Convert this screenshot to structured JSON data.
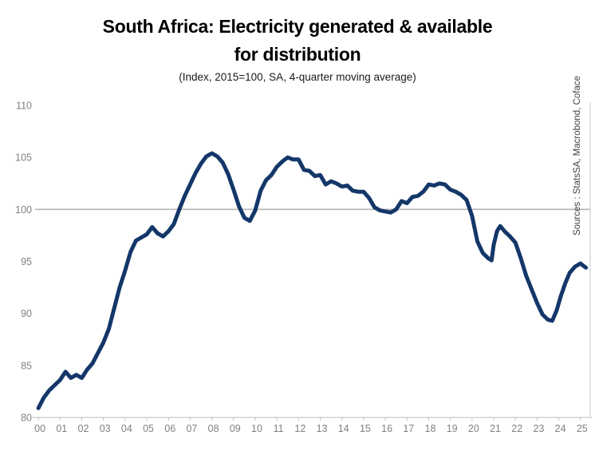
{
  "header": {
    "title_lines": [
      "South Africa: Electricity generated & available",
      "for distribution"
    ],
    "subtitle": "(Index, 2015=100, SA, 4-quarter moving average)"
  },
  "source_note": "Sources : StatsSA, Macrobond, Coface",
  "colors": {
    "line": "#143769",
    "reference_line": "#b5b5b5",
    "axis": "#bfbfbf",
    "frame": "#c9c9c9",
    "tick_label": "#808080",
    "title": "#000000",
    "subtitle": "#1a1a1a",
    "source": "#404040"
  },
  "chart_data": {
    "type": "line",
    "title": "South Africa: Electricity generated & available for distribution",
    "subtitle": "(Index, 2015=100, SA, 4-quarter moving average)",
    "xlabel": "",
    "ylabel": "",
    "xlim": [
      1999.85,
      2025.45
    ],
    "ylim": [
      80,
      110
    ],
    "grid": "off",
    "legend": "none",
    "reference_line_y": 100,
    "x_tick_labels": [
      "00",
      "01",
      "02",
      "03",
      "04",
      "05",
      "06",
      "07",
      "08",
      "09",
      "10",
      "11",
      "12",
      "13",
      "14",
      "15",
      "16",
      "17",
      "18",
      "19",
      "20",
      "21",
      "22",
      "23",
      "24",
      "25"
    ],
    "y_tick_labels": [
      80,
      85,
      90,
      95,
      100,
      105,
      110
    ],
    "series": [
      {
        "name": "Electricity generated & available for distribution, index 2015=100, 4-quarter moving average",
        "x": [
          2000.0,
          2000.25,
          2000.5,
          2000.75,
          2001.0,
          2001.25,
          2001.5,
          2001.75,
          2002.0,
          2002.25,
          2002.5,
          2002.75,
          2003.0,
          2003.25,
          2003.5,
          2003.75,
          2004.0,
          2004.25,
          2004.5,
          2004.75,
          2005.0,
          2005.25,
          2005.5,
          2005.75,
          2006.0,
          2006.25,
          2006.5,
          2006.75,
          2007.0,
          2007.25,
          2007.5,
          2007.75,
          2008.0,
          2008.25,
          2008.5,
          2008.75,
          2009.0,
          2009.25,
          2009.5,
          2009.75,
          2010.0,
          2010.25,
          2010.5,
          2010.75,
          2011.0,
          2011.25,
          2011.5,
          2011.75,
          2012.0,
          2012.25,
          2012.5,
          2012.75,
          2013.0,
          2013.25,
          2013.5,
          2013.75,
          2014.0,
          2014.25,
          2014.5,
          2014.75,
          2015.0,
          2015.25,
          2015.5,
          2015.75,
          2016.0,
          2016.25,
          2016.5,
          2016.75,
          2017.0,
          2017.25,
          2017.5,
          2017.75,
          2018.0,
          2018.25,
          2018.5,
          2018.75,
          2019.0,
          2019.25,
          2019.5,
          2019.75,
          2020.0,
          2020.25,
          2020.5,
          2020.75,
          2020.9,
          2021.0,
          2021.15,
          2021.3,
          2021.5,
          2021.75,
          2022.0,
          2022.25,
          2022.5,
          2022.75,
          2023.0,
          2023.25,
          2023.5,
          2023.7,
          2023.9,
          2024.1,
          2024.3,
          2024.5,
          2024.75,
          2025.0,
          2025.25
        ],
        "y": [
          80.9,
          81.9,
          82.6,
          83.1,
          83.6,
          84.4,
          83.8,
          84.1,
          83.8,
          84.6,
          85.2,
          86.2,
          87.2,
          88.5,
          90.5,
          92.5,
          94.1,
          95.9,
          97.0,
          97.3,
          97.6,
          98.3,
          97.7,
          97.4,
          97.9,
          98.6,
          100.0,
          101.3,
          102.4,
          103.5,
          104.4,
          105.1,
          105.4,
          105.1,
          104.5,
          103.4,
          101.9,
          100.3,
          99.2,
          98.9,
          99.9,
          101.8,
          102.8,
          103.3,
          104.1,
          104.6,
          105.0,
          104.8,
          104.8,
          103.8,
          103.7,
          103.2,
          103.3,
          102.4,
          102.7,
          102.5,
          102.2,
          102.3,
          101.8,
          101.7,
          101.7,
          101.1,
          100.2,
          99.9,
          99.8,
          99.7,
          100.0,
          100.8,
          100.6,
          101.2,
          101.3,
          101.7,
          102.4,
          102.3,
          102.5,
          102.4,
          101.9,
          101.7,
          101.4,
          100.9,
          99.4,
          96.9,
          95.8,
          95.3,
          95.1,
          96.6,
          97.9,
          98.4,
          97.9,
          97.4,
          96.8,
          95.3,
          93.6,
          92.3,
          91.0,
          89.9,
          89.4,
          89.3,
          90.3,
          91.7,
          92.9,
          93.9,
          94.5,
          94.8,
          94.4
        ]
      }
    ]
  }
}
